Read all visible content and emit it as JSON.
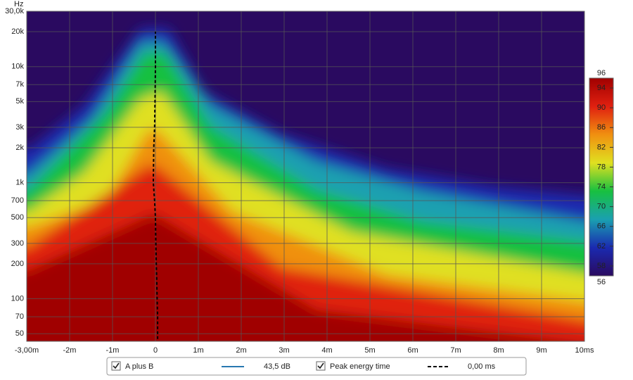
{
  "chart_data": {
    "type": "spectrogram",
    "y_label": "Hz",
    "xlim": [
      -3,
      10
    ],
    "ylim": [
      43,
      30000
    ],
    "log_y": true,
    "grid": true,
    "xticks": [
      {
        "value": -3,
        "label": "-3,00m"
      },
      {
        "value": -2,
        "label": "-2m"
      },
      {
        "value": -1,
        "label": "-1m"
      },
      0,
      {
        "value": 1,
        "label": "1m"
      },
      {
        "value": 2,
        "label": "2m"
      },
      {
        "value": 3,
        "label": "3m"
      },
      {
        "value": 4,
        "label": "4m"
      },
      {
        "value": 5,
        "label": "5m"
      },
      {
        "value": 6,
        "label": "6m"
      },
      {
        "value": 7,
        "label": "7m"
      },
      {
        "value": 8,
        "label": "8m"
      },
      {
        "value": 9,
        "label": "9m"
      },
      {
        "value": 10,
        "label": "10ms"
      }
    ],
    "yticks": [
      {
        "value": 30000,
        "label": "30,0k"
      },
      {
        "value": 20000,
        "label": "20k"
      },
      {
        "value": 10000,
        "label": "10k"
      },
      {
        "value": 7000,
        "label": "7k"
      },
      {
        "value": 5000,
        "label": "5k"
      },
      {
        "value": 3000,
        "label": "3k"
      },
      {
        "value": 2000,
        "label": "2k"
      },
      {
        "value": 1000,
        "label": "1k"
      },
      700,
      500,
      300,
      200,
      100,
      70,
      50
    ],
    "colorbar": {
      "lim": [
        56,
        96
      ],
      "ticks": [
        56,
        58,
        62,
        66,
        70,
        74,
        78,
        82,
        86,
        90,
        94,
        96
      ],
      "colors": [
        "#2a0a60",
        "#1a2ab0",
        "#1aa0b0",
        "#18c040",
        "#e0e020",
        "#f09010",
        "#e02010",
        "#a00000"
      ]
    },
    "peak_energy_time": {
      "color": "#000000",
      "x": [
        0.05,
        0.05,
        0.04,
        0.03,
        0.02,
        0.01,
        0,
        -0.02,
        -0.05,
        -0.04,
        -0.02,
        -0.01,
        0,
        0
      ],
      "y": [
        45,
        70,
        100,
        150,
        200,
        300,
        500,
        700,
        1000,
        2000,
        3000,
        5000,
        10000,
        20000
      ]
    },
    "legend": [
      {
        "name": "A plus B",
        "color": "#2878b0",
        "value_label": "43,5 dB"
      },
      {
        "name": "Peak energy time",
        "color": "#000000",
        "value_label": "0,00 ms"
      }
    ]
  }
}
